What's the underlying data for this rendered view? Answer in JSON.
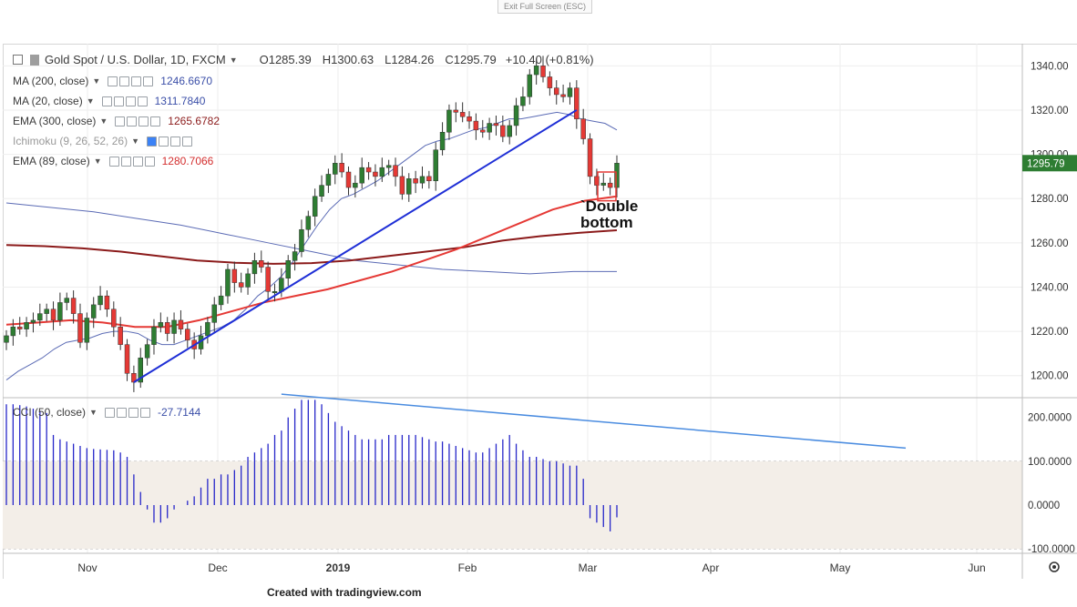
{
  "top_button": "Exit Full Screen (ESC)",
  "header": {
    "symbol": "Gold Spot / U.S. Dollar, 1D, FXCM",
    "o": "O1285.39",
    "h": "H1300.63",
    "l": "L1284.26",
    "c": "C1295.79",
    "change": "+10.40 (+0.81%)"
  },
  "indicators": [
    {
      "label": "MA (200, close)",
      "value": "1246.6670",
      "color": "#3b4fa8"
    },
    {
      "label": "MA (20, close)",
      "value": "1311.7840",
      "color": "#3b4fa8"
    },
    {
      "label": "EMA (300, close)",
      "value": "1265.6782",
      "color": "#8b1a1a"
    },
    {
      "label": "Ichimoku (9, 26, 52, 26)",
      "value": "",
      "color": "#999999"
    },
    {
      "label": "EMA (89, close)",
      "value": "1280.7066",
      "color": "#d32f2f"
    }
  ],
  "cci_legend": {
    "label": "CCI (50, close)",
    "value": "-27.7144"
  },
  "last_price_badge": "1295.79",
  "annotation": "`Double\nbottom",
  "credit": "Created with tradingview.com",
  "colors": {
    "up": "#2e7d32",
    "down": "#e53935",
    "ma": "#5b6bb5",
    "ema300": "#8b1a1a",
    "ema89": "#e53935",
    "trend": "#1f2fd6",
    "cci": "#2626c9",
    "cci_trend": "#4a8ce0"
  },
  "chart_data": {
    "type": "candlestick",
    "price_axis": {
      "range": [
        1190,
        1350
      ],
      "ticks": [
        1200,
        1220,
        1240,
        1260,
        1280,
        1300,
        1320,
        1340
      ],
      "tick_labels": [
        "1200.00",
        "1220.00",
        "1240.00",
        "1260.00",
        "1280.00",
        "1300.00",
        "1320.00",
        "1340.00"
      ]
    },
    "cci_axis": {
      "range": [
        -110,
        245
      ],
      "ticks": [
        200,
        100,
        0,
        -100
      ],
      "tick_labels": [
        "200.0000",
        "100.0000",
        "0.0000",
        "-100.0000"
      ],
      "band": [
        -100,
        100
      ]
    },
    "x_axis": {
      "tick_labels": [
        "Nov",
        "Dec",
        "2019",
        "Feb",
        "Mar",
        "Apr",
        "May",
        "Jun"
      ],
      "tick_months": [
        1,
        2,
        3,
        4,
        5,
        6,
        7,
        8
      ]
    },
    "candles_close": [
      1218,
      1222,
      1221,
      1224,
      1225,
      1228,
      1230,
      1225,
      1233,
      1235,
      1228,
      1215,
      1226,
      1232,
      1236,
      1230,
      1222,
      1214,
      1201,
      1197,
      1208,
      1214,
      1222,
      1224,
      1219,
      1225,
      1221,
      1216,
      1212,
      1218,
      1224,
      1232,
      1236,
      1248,
      1242,
      1240,
      1246,
      1252,
      1249,
      1238,
      1238,
      1244,
      1252,
      1256,
      1266,
      1272,
      1281,
      1286,
      1291,
      1296,
      1292,
      1285,
      1287,
      1294,
      1292,
      1290,
      1294,
      1295,
      1290,
      1282,
      1289,
      1287,
      1290,
      1288,
      1302,
      1310,
      1320,
      1319,
      1317,
      1315,
      1311,
      1310,
      1314,
      1313,
      1308,
      1313,
      1322,
      1326,
      1336,
      1340,
      1335,
      1330,
      1327,
      1326,
      1330,
      1316,
      1307,
      1290,
      1286,
      1287,
      1285,
      1296
    ],
    "ma20": [
      1198,
      1202,
      1205,
      1208,
      1212,
      1215,
      1216,
      1217,
      1219,
      1220,
      1220,
      1219,
      1216,
      1214,
      1214,
      1216,
      1218,
      1220,
      1222,
      1225,
      1230,
      1236,
      1240,
      1245,
      1252,
      1260,
      1268,
      1275,
      1280,
      1282,
      1285,
      1288,
      1292,
      1296,
      1300,
      1304,
      1306,
      1307,
      1309,
      1311,
      1312,
      1314,
      1316,
      1316,
      1317,
      1318,
      1319,
      1318,
      1316,
      1315,
      1314,
      1311
    ],
    "ma200": [
      1278,
      1276,
      1274,
      1271,
      1268,
      1264,
      1260,
      1256,
      1252,
      1250,
      1248,
      1247,
      1246,
      1247,
      1247
    ],
    "ema300": [
      1259,
      1258.5,
      1257.5,
      1256,
      1254,
      1252,
      1251,
      1250.5,
      1250.8,
      1252,
      1254,
      1256,
      1258,
      1261,
      1263,
      1264.5,
      1265.7
    ],
    "ema89": [
      1223,
      1224,
      1225,
      1224,
      1222,
      1222,
      1225,
      1229,
      1233,
      1236,
      1239,
      1243,
      1247,
      1252,
      1257,
      1263,
      1269,
      1275,
      1279,
      1281
    ],
    "cci": [
      230,
      230,
      228,
      225,
      220,
      215,
      210,
      160,
      150,
      145,
      140,
      135,
      130,
      128,
      127,
      126,
      125,
      120,
      110,
      70,
      30,
      -10,
      -40,
      -40,
      -30,
      -10,
      0,
      10,
      20,
      40,
      60,
      60,
      70,
      70,
      80,
      90,
      110,
      120,
      130,
      140,
      160,
      170,
      200,
      220,
      240,
      240,
      240,
      230,
      210,
      190,
      180,
      170,
      160,
      150,
      150,
      150,
      150,
      160,
      160,
      160,
      160,
      160,
      155,
      150,
      145,
      145,
      140,
      135,
      130,
      125,
      120,
      120,
      130,
      140,
      150,
      160,
      140,
      125,
      110,
      110,
      105,
      100,
      100,
      95,
      90,
      90,
      60,
      -30,
      -40,
      -50,
      -60,
      -28
    ]
  }
}
